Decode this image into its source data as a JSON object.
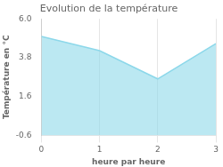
{
  "chart_data": {
    "type": "area",
    "title": "Evolution de la température",
    "xlabel": "heure par heure",
    "ylabel": "Température en °C",
    "x": [
      0,
      1,
      2,
      3
    ],
    "values": [
      5.0,
      4.2,
      2.6,
      4.6
    ],
    "color": "#8dd8ea",
    "xlim": [
      0,
      3
    ],
    "xticks": [
      0,
      1,
      2,
      3
    ],
    "ylim": [
      -0.6,
      6.0
    ],
    "yticks": [
      -0.6,
      1.6,
      3.8,
      {
        "value": 6.0,
        "label": "6.0"
      }
    ],
    "grid": "x"
  }
}
